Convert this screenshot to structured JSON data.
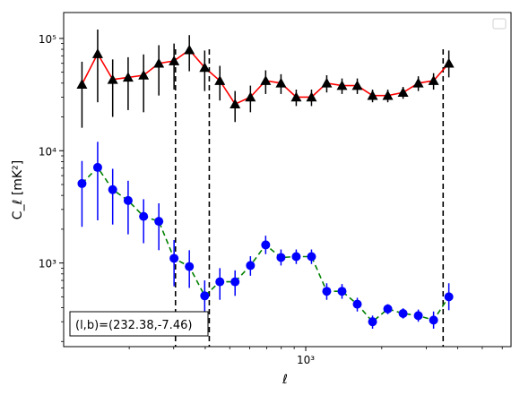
{
  "chart_data": {
    "type": "scatter",
    "xlabel": "ℓ",
    "ylabel": "C_ℓ [mK²]",
    "xscale": "log",
    "yscale": "log",
    "xlim": [
      110,
      6500
    ],
    "ylim": [
      180,
      170000
    ],
    "x_tick_labels": [
      {
        "value": 1000,
        "label": "10³"
      }
    ],
    "y_tick_labels": [
      {
        "value": 1000,
        "label": "10³"
      },
      {
        "value": 10000,
        "label": "10⁴"
      },
      {
        "value": 100000,
        "label": "10⁵"
      }
    ],
    "annotation": "(l,b)=(232.38,-7.46)",
    "legend_placement": "top-right",
    "vertical_lines_x": [
      305,
      415,
      3500
    ],
    "series": [
      {
        "marker": "triangle",
        "color": "#000000",
        "line_color": "#ff0000",
        "line_style": "solid",
        "errorbar_color": "#000000",
        "points": [
          {
            "x": 130,
            "y": 39000,
            "lo": 16000,
            "hi": 62000
          },
          {
            "x": 150,
            "y": 73000,
            "lo": 27000,
            "hi": 120000
          },
          {
            "x": 172,
            "y": 43000,
            "lo": 20000,
            "hi": 65000
          },
          {
            "x": 198,
            "y": 45000,
            "lo": 23000,
            "hi": 68000
          },
          {
            "x": 228,
            "y": 47000,
            "lo": 22000,
            "hi": 72000
          },
          {
            "x": 262,
            "y": 60000,
            "lo": 31000,
            "hi": 87000
          },
          {
            "x": 301,
            "y": 63000,
            "lo": 35000,
            "hi": 90000
          },
          {
            "x": 346,
            "y": 79000,
            "lo": 51000,
            "hi": 107000
          },
          {
            "x": 398,
            "y": 55000,
            "lo": 34000,
            "hi": 78000
          },
          {
            "x": 457,
            "y": 42000,
            "lo": 28000,
            "hi": 57000
          },
          {
            "x": 525,
            "y": 26000,
            "lo": 18000,
            "hi": 34000
          },
          {
            "x": 604,
            "y": 30000,
            "lo": 22000,
            "hi": 38000
          },
          {
            "x": 694,
            "y": 42000,
            "lo": 32000,
            "hi": 52000
          },
          {
            "x": 798,
            "y": 40000,
            "lo": 32000,
            "hi": 48000
          },
          {
            "x": 917,
            "y": 30000,
            "lo": 25000,
            "hi": 35000
          },
          {
            "x": 1054,
            "y": 30000,
            "lo": 25000,
            "hi": 35000
          },
          {
            "x": 1211,
            "y": 40000,
            "lo": 33000,
            "hi": 47000
          },
          {
            "x": 1392,
            "y": 38000,
            "lo": 32000,
            "hi": 44000
          },
          {
            "x": 1600,
            "y": 38000,
            "lo": 32000,
            "hi": 44000
          },
          {
            "x": 1839,
            "y": 31000,
            "lo": 27000,
            "hi": 35000
          },
          {
            "x": 2113,
            "y": 31000,
            "lo": 27000,
            "hi": 35000
          },
          {
            "x": 2429,
            "y": 33000,
            "lo": 29000,
            "hi": 37000
          },
          {
            "x": 2791,
            "y": 40000,
            "lo": 34000,
            "hi": 46000
          },
          {
            "x": 3208,
            "y": 42000,
            "lo": 35000,
            "hi": 49000
          },
          {
            "x": 3687,
            "y": 60000,
            "lo": 45000,
            "hi": 78000
          }
        ]
      },
      {
        "marker": "circle",
        "color": "#0000ff",
        "line_color": "#008000",
        "line_style": "dashed",
        "errorbar_color": "#0000ff",
        "points": [
          {
            "x": 130,
            "y": 5100,
            "lo": 2100,
            "hi": 8100
          },
          {
            "x": 150,
            "y": 7100,
            "lo": 2400,
            "hi": 12000
          },
          {
            "x": 172,
            "y": 4500,
            "lo": 2200,
            "hi": 6900
          },
          {
            "x": 198,
            "y": 3600,
            "lo": 1800,
            "hi": 5400
          },
          {
            "x": 228,
            "y": 2600,
            "lo": 1500,
            "hi": 3700
          },
          {
            "x": 262,
            "y": 2350,
            "lo": 1300,
            "hi": 3400
          },
          {
            "x": 301,
            "y": 1100,
            "lo": 620,
            "hi": 1600
          },
          {
            "x": 346,
            "y": 930,
            "lo": 600,
            "hi": 1300
          },
          {
            "x": 398,
            "y": 510,
            "lo": 330,
            "hi": 700
          },
          {
            "x": 457,
            "y": 680,
            "lo": 470,
            "hi": 900
          },
          {
            "x": 525,
            "y": 680,
            "lo": 510,
            "hi": 860
          },
          {
            "x": 604,
            "y": 950,
            "lo": 770,
            "hi": 1150
          },
          {
            "x": 694,
            "y": 1450,
            "lo": 1200,
            "hi": 1750
          },
          {
            "x": 798,
            "y": 1120,
            "lo": 950,
            "hi": 1320
          },
          {
            "x": 917,
            "y": 1140,
            "lo": 980,
            "hi": 1320
          },
          {
            "x": 1054,
            "y": 1140,
            "lo": 980,
            "hi": 1320
          },
          {
            "x": 1211,
            "y": 560,
            "lo": 470,
            "hi": 660
          },
          {
            "x": 1392,
            "y": 560,
            "lo": 480,
            "hi": 650
          },
          {
            "x": 1600,
            "y": 430,
            "lo": 370,
            "hi": 490
          },
          {
            "x": 1839,
            "y": 300,
            "lo": 260,
            "hi": 340
          },
          {
            "x": 2113,
            "y": 390,
            "lo": 350,
            "hi": 430
          },
          {
            "x": 2429,
            "y": 355,
            "lo": 320,
            "hi": 395
          },
          {
            "x": 2791,
            "y": 340,
            "lo": 300,
            "hi": 385
          },
          {
            "x": 3208,
            "y": 310,
            "lo": 260,
            "hi": 370
          },
          {
            "x": 3687,
            "y": 500,
            "lo": 380,
            "hi": 660
          }
        ]
      }
    ]
  }
}
